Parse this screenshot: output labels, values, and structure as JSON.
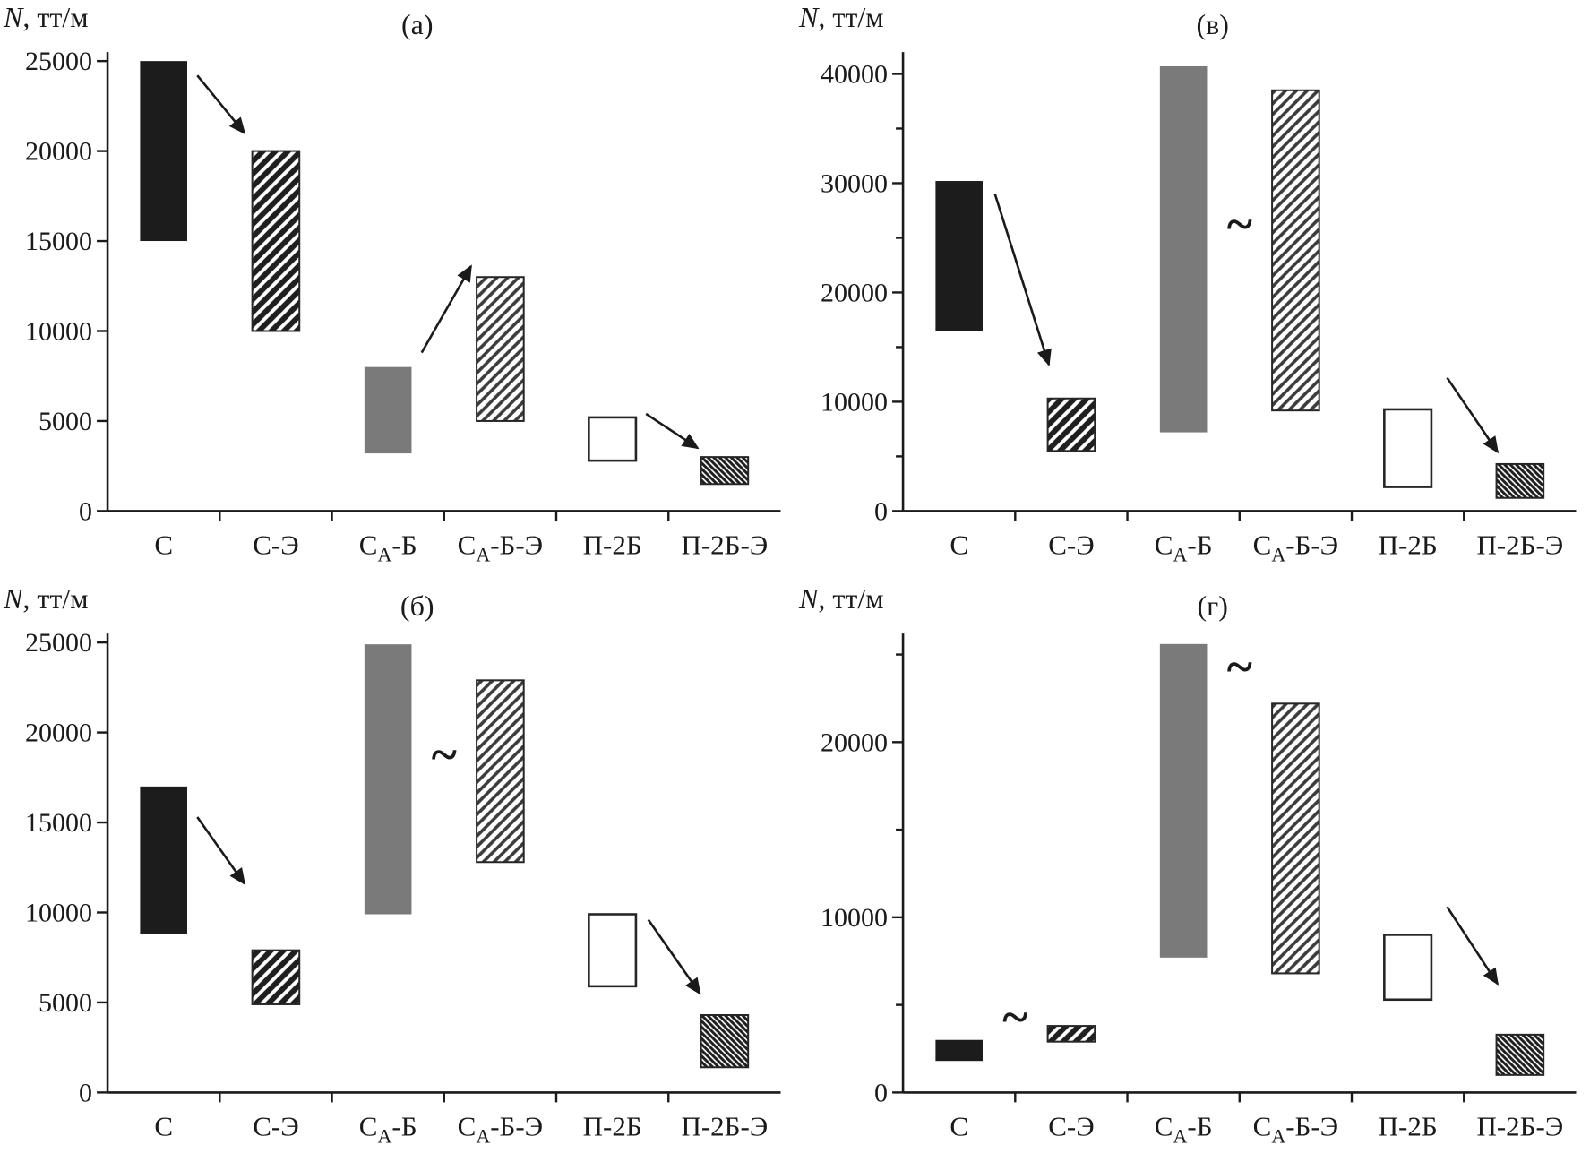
{
  "figure": {
    "background": "#ffffff",
    "axis_color": "#1a1a1a",
    "text_color": "#1a1a1a",
    "bar_black": "#1c1c1c",
    "bar_gray": "#7a7a7a",
    "bar_outline_fill": "#ffffff",
    "bar_edge": "#262626",
    "hatch_color": "#1f1f1f"
  },
  "chart_data": [
    {
      "type": "bar",
      "subtype": "floating-range-bars",
      "id": "a",
      "panel_label": "(а)",
      "ylabel_italic": "N",
      "ylabel_rest": ", тт/м",
      "ylim": [
        0,
        25000
      ],
      "ymax_draw": 25500,
      "grid": false,
      "legend": "none",
      "yticks": [
        {
          "v": 0,
          "label": "0"
        },
        {
          "v": 5000,
          "label": "5000"
        },
        {
          "v": 10000,
          "label": "10000"
        },
        {
          "v": 15000,
          "label": "15000"
        },
        {
          "v": 20000,
          "label": "20000"
        },
        {
          "v": 25000,
          "label": "25000"
        }
      ],
      "categories": [
        {
          "parts": [
            {
              "t": "С"
            }
          ]
        },
        {
          "parts": [
            {
              "t": "С-Э"
            }
          ]
        },
        {
          "parts": [
            {
              "t": "С"
            },
            {
              "t": "А",
              "sub": true
            },
            {
              "t": "-Б"
            }
          ]
        },
        {
          "parts": [
            {
              "t": "С"
            },
            {
              "t": "А",
              "sub": true
            },
            {
              "t": "-Б-Э"
            }
          ]
        },
        {
          "parts": [
            {
              "t": "П-2Б"
            }
          ]
        },
        {
          "parts": [
            {
              "t": "П-2Б-Э"
            }
          ]
        }
      ],
      "bars": [
        {
          "cat": 0,
          "low": 15000,
          "high": 25000,
          "style": "black"
        },
        {
          "cat": 1,
          "low": 10000,
          "high": 20000,
          "style": "hatch"
        },
        {
          "cat": 2,
          "low": 3200,
          "high": 8000,
          "style": "gray"
        },
        {
          "cat": 3,
          "low": 5000,
          "high": 13000,
          "style": "hatch-light"
        },
        {
          "cat": 4,
          "low": 2800,
          "high": 5200,
          "style": "outline"
        },
        {
          "cat": 5,
          "low": 1500,
          "high": 3000,
          "style": "hatch-dense"
        }
      ],
      "annotations": [
        {
          "type": "arrow",
          "x1": 0.3,
          "y1": 24200,
          "x2": 0.72,
          "y2": 21000
        },
        {
          "type": "arrow",
          "x1": 2.3,
          "y1": 8800,
          "x2": 2.74,
          "y2": 13600
        },
        {
          "type": "arrow",
          "x1": 4.3,
          "y1": 5400,
          "x2": 4.76,
          "y2": 3500
        }
      ]
    },
    {
      "type": "bar",
      "subtype": "floating-range-bars",
      "id": "v",
      "panel_label": "(в)",
      "ylabel_italic": "N",
      "ylabel_rest": ", тт/м",
      "ylim": [
        0,
        40000
      ],
      "ymax_draw": 42000,
      "grid": false,
      "legend": "none",
      "yticks": [
        {
          "v": 0,
          "label": "0"
        },
        {
          "v": 5000,
          "label": ""
        },
        {
          "v": 10000,
          "label": "10000"
        },
        {
          "v": 15000,
          "label": ""
        },
        {
          "v": 20000,
          "label": "20000"
        },
        {
          "v": 25000,
          "label": ""
        },
        {
          "v": 30000,
          "label": "30000"
        },
        {
          "v": 35000,
          "label": ""
        },
        {
          "v": 40000,
          "label": "40000"
        }
      ],
      "categories": [
        {
          "parts": [
            {
              "t": "С"
            }
          ]
        },
        {
          "parts": [
            {
              "t": "С-Э"
            }
          ]
        },
        {
          "parts": [
            {
              "t": "С"
            },
            {
              "t": "А",
              "sub": true
            },
            {
              "t": "-Б"
            }
          ]
        },
        {
          "parts": [
            {
              "t": "С"
            },
            {
              "t": "А",
              "sub": true
            },
            {
              "t": "-Б-Э"
            }
          ]
        },
        {
          "parts": [
            {
              "t": "П-2Б"
            }
          ]
        },
        {
          "parts": [
            {
              "t": "П-2Б-Э"
            }
          ]
        }
      ],
      "bars": [
        {
          "cat": 0,
          "low": 16500,
          "high": 30200,
          "style": "black"
        },
        {
          "cat": 1,
          "low": 5500,
          "high": 10300,
          "style": "hatch"
        },
        {
          "cat": 2,
          "low": 7200,
          "high": 40700,
          "style": "gray"
        },
        {
          "cat": 3,
          "low": 9200,
          "high": 38500,
          "style": "hatch-light"
        },
        {
          "cat": 4,
          "low": 2200,
          "high": 9300,
          "style": "outline"
        },
        {
          "cat": 5,
          "low": 1200,
          "high": 4300,
          "style": "hatch-dense"
        }
      ],
      "annotations": [
        {
          "type": "arrow",
          "x1": 0.32,
          "y1": 29000,
          "x2": 0.8,
          "y2": 13400
        },
        {
          "type": "tilde",
          "x": 2.5,
          "y": 24800
        },
        {
          "type": "arrow",
          "x1": 4.35,
          "y1": 12200,
          "x2": 4.8,
          "y2": 5400
        }
      ]
    },
    {
      "type": "bar",
      "subtype": "floating-range-bars",
      "id": "b",
      "panel_label": "(б)",
      "ylabel_italic": "N",
      "ylabel_rest": ", тт/м",
      "ylim": [
        0,
        25000
      ],
      "ymax_draw": 25500,
      "grid": false,
      "legend": "none",
      "yticks": [
        {
          "v": 0,
          "label": "0"
        },
        {
          "v": 5000,
          "label": "5000"
        },
        {
          "v": 10000,
          "label": "10000"
        },
        {
          "v": 15000,
          "label": "15000"
        },
        {
          "v": 20000,
          "label": "20000"
        },
        {
          "v": 25000,
          "label": "25000"
        }
      ],
      "categories": [
        {
          "parts": [
            {
              "t": "С"
            }
          ]
        },
        {
          "parts": [
            {
              "t": "С-Э"
            }
          ]
        },
        {
          "parts": [
            {
              "t": "С"
            },
            {
              "t": "А",
              "sub": true
            },
            {
              "t": "-Б"
            }
          ]
        },
        {
          "parts": [
            {
              "t": "С"
            },
            {
              "t": "А",
              "sub": true
            },
            {
              "t": "-Б-Э"
            }
          ]
        },
        {
          "parts": [
            {
              "t": "П-2Б"
            }
          ]
        },
        {
          "parts": [
            {
              "t": "П-2Б-Э"
            }
          ]
        }
      ],
      "bars": [
        {
          "cat": 0,
          "low": 8800,
          "high": 17000,
          "style": "black"
        },
        {
          "cat": 1,
          "low": 4900,
          "high": 7900,
          "style": "hatch"
        },
        {
          "cat": 2,
          "low": 9900,
          "high": 24900,
          "style": "gray"
        },
        {
          "cat": 3,
          "low": 12800,
          "high": 22900,
          "style": "hatch-light"
        },
        {
          "cat": 4,
          "low": 5900,
          "high": 9900,
          "style": "outline"
        },
        {
          "cat": 5,
          "low": 1400,
          "high": 4300,
          "style": "hatch-dense"
        }
      ],
      "annotations": [
        {
          "type": "arrow",
          "x1": 0.3,
          "y1": 15300,
          "x2": 0.72,
          "y2": 11600
        },
        {
          "type": "tilde",
          "x": 2.5,
          "y": 17900
        },
        {
          "type": "arrow",
          "x1": 4.32,
          "y1": 9600,
          "x2": 4.78,
          "y2": 5500
        }
      ]
    },
    {
      "type": "bar",
      "subtype": "floating-range-bars",
      "id": "g",
      "panel_label": "(г)",
      "ylabel_italic": "N",
      "ylabel_rest": ", тт/м",
      "ylim": [
        0,
        25000
      ],
      "ymax_draw": 26200,
      "grid": false,
      "legend": "none",
      "yticks": [
        {
          "v": 0,
          "label": "0"
        },
        {
          "v": 5000,
          "label": ""
        },
        {
          "v": 10000,
          "label": "10000"
        },
        {
          "v": 15000,
          "label": ""
        },
        {
          "v": 20000,
          "label": "20000"
        },
        {
          "v": 25000,
          "label": ""
        }
      ],
      "categories": [
        {
          "parts": [
            {
              "t": "С"
            }
          ]
        },
        {
          "parts": [
            {
              "t": "С-Э"
            }
          ]
        },
        {
          "parts": [
            {
              "t": "С"
            },
            {
              "t": "А",
              "sub": true
            },
            {
              "t": "-Б"
            }
          ]
        },
        {
          "parts": [
            {
              "t": "С"
            },
            {
              "t": "А",
              "sub": true
            },
            {
              "t": "-Б-Э"
            }
          ]
        },
        {
          "parts": [
            {
              "t": "П-2Б"
            }
          ]
        },
        {
          "parts": [
            {
              "t": "П-2Б-Э"
            }
          ]
        }
      ],
      "bars": [
        {
          "cat": 0,
          "low": 1800,
          "high": 3000,
          "style": "black"
        },
        {
          "cat": 1,
          "low": 2900,
          "high": 3800,
          "style": "hatch"
        },
        {
          "cat": 2,
          "low": 7700,
          "high": 25600,
          "style": "gray"
        },
        {
          "cat": 3,
          "low": 6800,
          "high": 22200,
          "style": "hatch-light"
        },
        {
          "cat": 4,
          "low": 5300,
          "high": 9000,
          "style": "outline"
        },
        {
          "cat": 5,
          "low": 1000,
          "high": 3300,
          "style": "hatch-dense"
        }
      ],
      "annotations": [
        {
          "type": "tilde",
          "x": 0.5,
          "y": 3400
        },
        {
          "type": "tilde",
          "x": 2.5,
          "y": 23400
        },
        {
          "type": "arrow",
          "x1": 4.35,
          "y1": 10600,
          "x2": 4.8,
          "y2": 6200
        }
      ]
    }
  ]
}
